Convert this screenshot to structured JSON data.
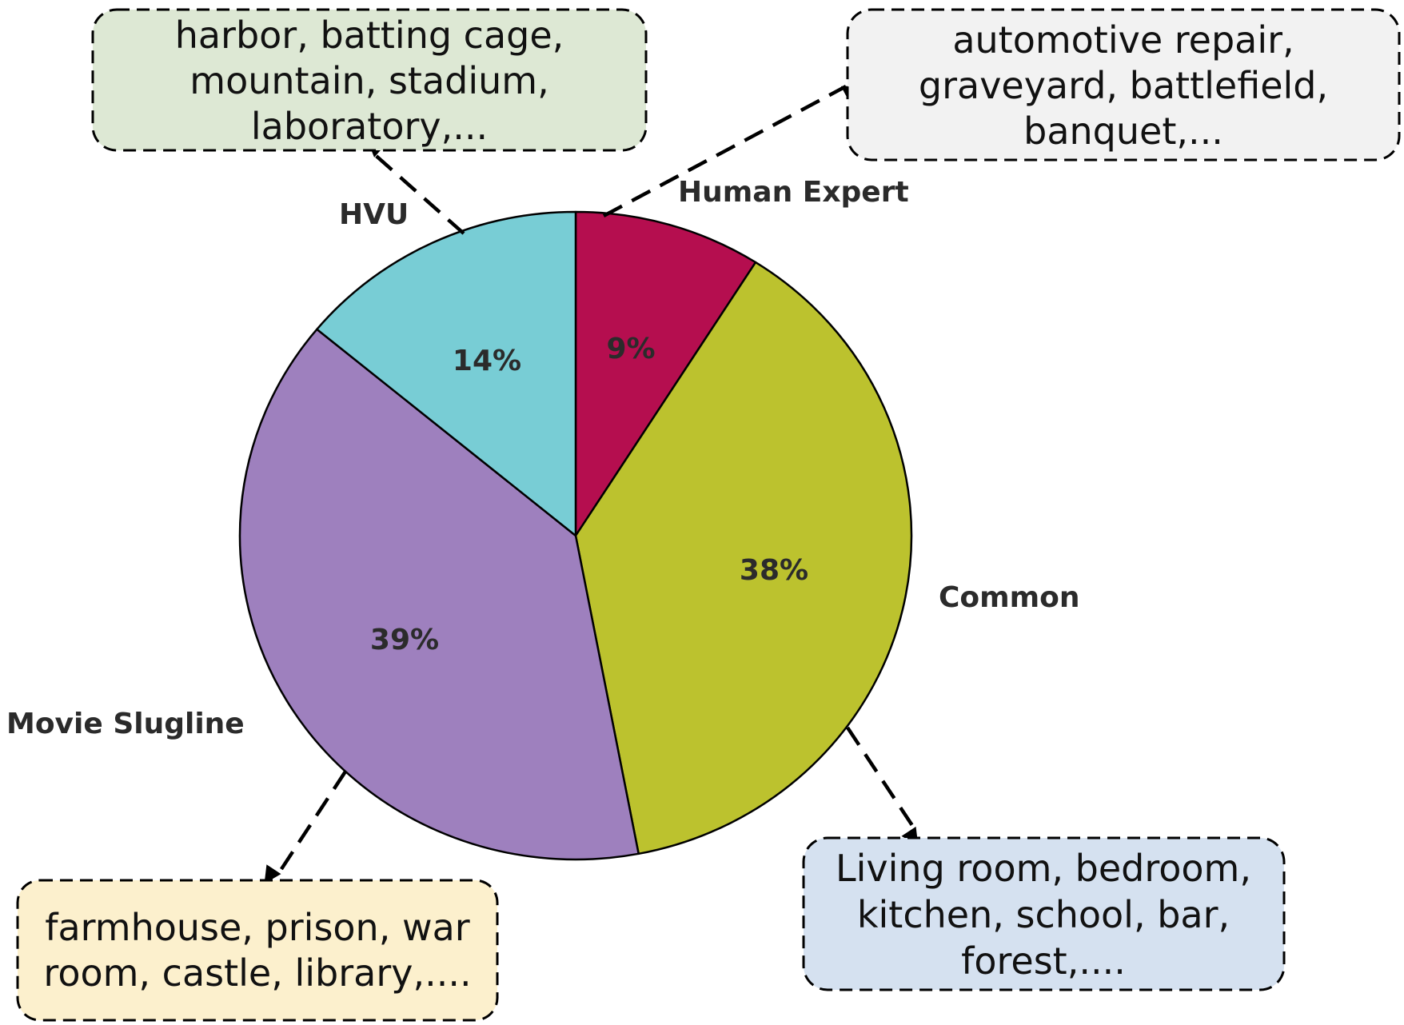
{
  "chart_data": {
    "type": "pie",
    "slices": [
      {
        "name": "Human Expert",
        "value": 9,
        "pct_label": "9%",
        "color": "#b50e4f"
      },
      {
        "name": "Common",
        "value": 38,
        "pct_label": "38%",
        "color": "#bcc22e"
      },
      {
        "name": "Movie Slugline",
        "value": 39,
        "pct_label": "39%",
        "color": "#9e80be"
      },
      {
        "name": "HVU",
        "value": 14,
        "pct_label": "14%",
        "color": "#78cdd5"
      }
    ]
  },
  "callouts": {
    "hvu": {
      "lines": [
        "harbor, batting cage,",
        "mountain, stadium,",
        "laboratory,..."
      ],
      "color": "#dde8d4"
    },
    "human_expert": {
      "lines": [
        "automotive repair,",
        "graveyard, battlefield,",
        "banquet,..."
      ],
      "color": "#f2f2f2"
    },
    "movie_slugline": {
      "lines": [
        "farmhouse, prison, war",
        "room, castle, library,...."
      ],
      "color": "#fcf0cd"
    },
    "common": {
      "lines": [
        "Living room, bedroom,",
        "kitchen, school, bar,",
        "forest,...."
      ],
      "color": "#d5e1f0"
    }
  }
}
